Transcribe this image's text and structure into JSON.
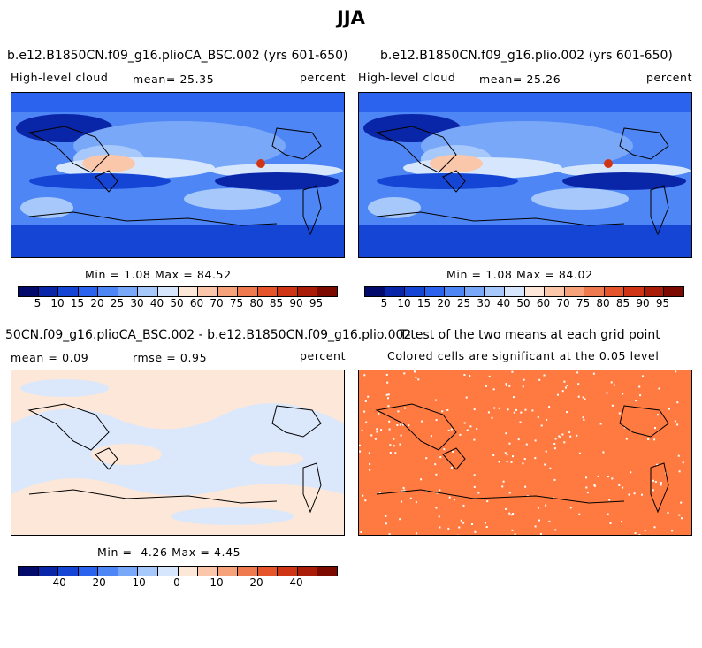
{
  "title": "JJA",
  "panels": [
    {
      "title": "b.e12.B1850CN.f09_g16.plioCA_BSC.002 (yrs 601-650)",
      "left_label": "High-level cloud",
      "mean_label": "mean=  25.35",
      "units": "percent",
      "minmax": "Min =    1.08 Max =   84.52"
    },
    {
      "title": "b.e12.B1850CN.f09_g16.plio.002 (yrs 601-650)",
      "left_label": "High-level cloud",
      "mean_label": "mean=  25.26",
      "units": "percent",
      "minmax": "Min =    1.08 Max =   84.02"
    },
    {
      "title": "50CN.f09_g16.plioCA_BSC.002 - b.e12.B1850CN.f09_g16.plio.002",
      "mean_label": "mean =    0.09",
      "rmse_label": "rmse =    0.95",
      "units": "percent",
      "minmax": "Min =  -4.26 Max =    4.45"
    },
    {
      "title": "T-test of the two means at each grid point",
      "subtitle": "Colored cells are significant at the 0.05 level"
    }
  ],
  "colorbar_abs": {
    "colors": [
      "#020b6b",
      "#0a26a8",
      "#1545d4",
      "#2b63ee",
      "#4f86f5",
      "#7aa8f8",
      "#a7c8fa",
      "#d6e6fc",
      "#fde7d8",
      "#fbc7ab",
      "#f6a27b",
      "#f07a4f",
      "#e5542a",
      "#cf3514",
      "#a91d08",
      "#7d0a00"
    ],
    "labels": [
      "5",
      "10",
      "15",
      "20",
      "25",
      "30",
      "40",
      "50",
      "60",
      "70",
      "75",
      "80",
      "85",
      "90",
      "95"
    ]
  },
  "colorbar_diff": {
    "colors": [
      "#020b6b",
      "#0a26a8",
      "#1545d4",
      "#2b63ee",
      "#4f86f5",
      "#7aa8f8",
      "#a7c8fa",
      "#d6e6fc",
      "#fde7d8",
      "#fbc7ab",
      "#f6a27b",
      "#f07a4f",
      "#e5542a",
      "#cf3514",
      "#a91d08",
      "#7d0a00"
    ],
    "labels": [
      "-40",
      "-20",
      "-10",
      "0",
      "10",
      "20",
      "40"
    ]
  },
  "colors": {
    "ttest_fill": "#ff7a40",
    "diff_blue": "#dbe8fb",
    "diff_peach": "#fde7d8"
  }
}
